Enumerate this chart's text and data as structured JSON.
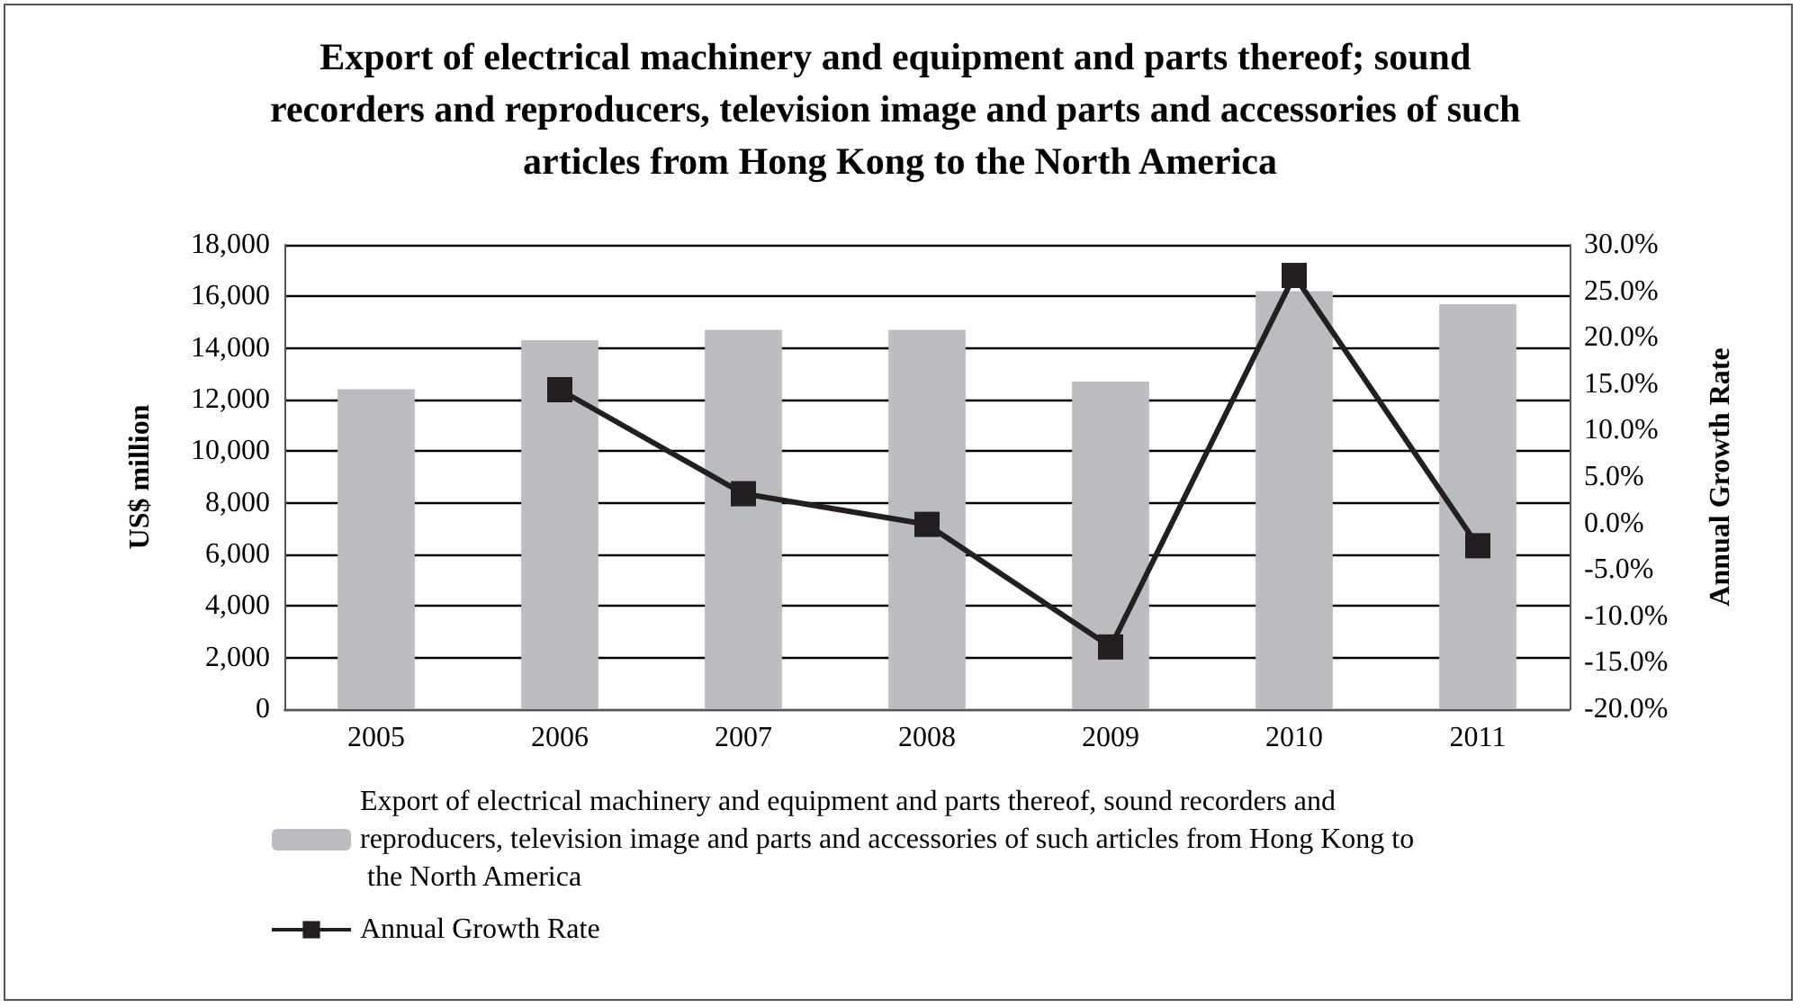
{
  "chart_data": {
    "type": "bar",
    "title": "Export of electrical machinery and equipment and parts thereof; sound recorders and reproducers, television image and parts and accessories of such articles from Hong Kong to the North America",
    "ylabel": "US$ million",
    "y2label": "Annual Growth Rate",
    "categories": [
      "2005",
      "2006",
      "2007",
      "2008",
      "2009",
      "2010",
      "2011"
    ],
    "series": [
      {
        "name": "Export of electrical machinery and equipment and parts thereof, sound recorders and reproducers, television image and parts and accessories of such articles from Hong Kong to the North America",
        "color": "#bbbcc0",
        "values": [
          12400,
          14300,
          14700,
          14700,
          12700,
          16200,
          15700
        ]
      },
      {
        "name": "Annual Growth Rate",
        "type": "line",
        "axis": "y2",
        "color": "#231f20",
        "marker": "square",
        "line_style": "solid",
        "values": [
          null,
          14.4,
          3.2,
          -0.1,
          -13.3,
          26.7,
          -2.4
        ]
      }
    ],
    "ylim": [
      0,
      18000
    ],
    "yticks": [
      {
        "value": 0,
        "label": "0"
      },
      {
        "value": 2000,
        "label": "2,000"
      },
      {
        "value": 4000,
        "label": "4,000"
      },
      {
        "value": 6000,
        "label": "6,000"
      },
      {
        "value": 8000,
        "label": "8,000"
      },
      {
        "value": 10000,
        "label": "10,000"
      },
      {
        "value": 12000,
        "label": "12,000"
      },
      {
        "value": 14000,
        "label": "14,000"
      },
      {
        "value": 16000,
        "label": "16,000"
      },
      {
        "value": 18000,
        "label": "18,000"
      }
    ],
    "y2lim": [
      -20,
      30
    ],
    "y2ticks": [
      {
        "value": -20,
        "label": "-20.0%"
      },
      {
        "value": -15,
        "label": "-15.0%"
      },
      {
        "value": -10,
        "label": "-10.0%"
      },
      {
        "value": -5,
        "label": "-5.0%"
      },
      {
        "value": 0,
        "label": "0.0%"
      },
      {
        "value": 5,
        "label": "5.0%"
      },
      {
        "value": 10,
        "label": "10.0%"
      },
      {
        "value": 15,
        "label": "15.0%"
      },
      {
        "value": 20,
        "label": "20.0%"
      },
      {
        "value": 25,
        "label": "25.0%"
      },
      {
        "value": 30,
        "label": "30.0%"
      }
    ],
    "grid": "y",
    "legend": "bottom"
  }
}
